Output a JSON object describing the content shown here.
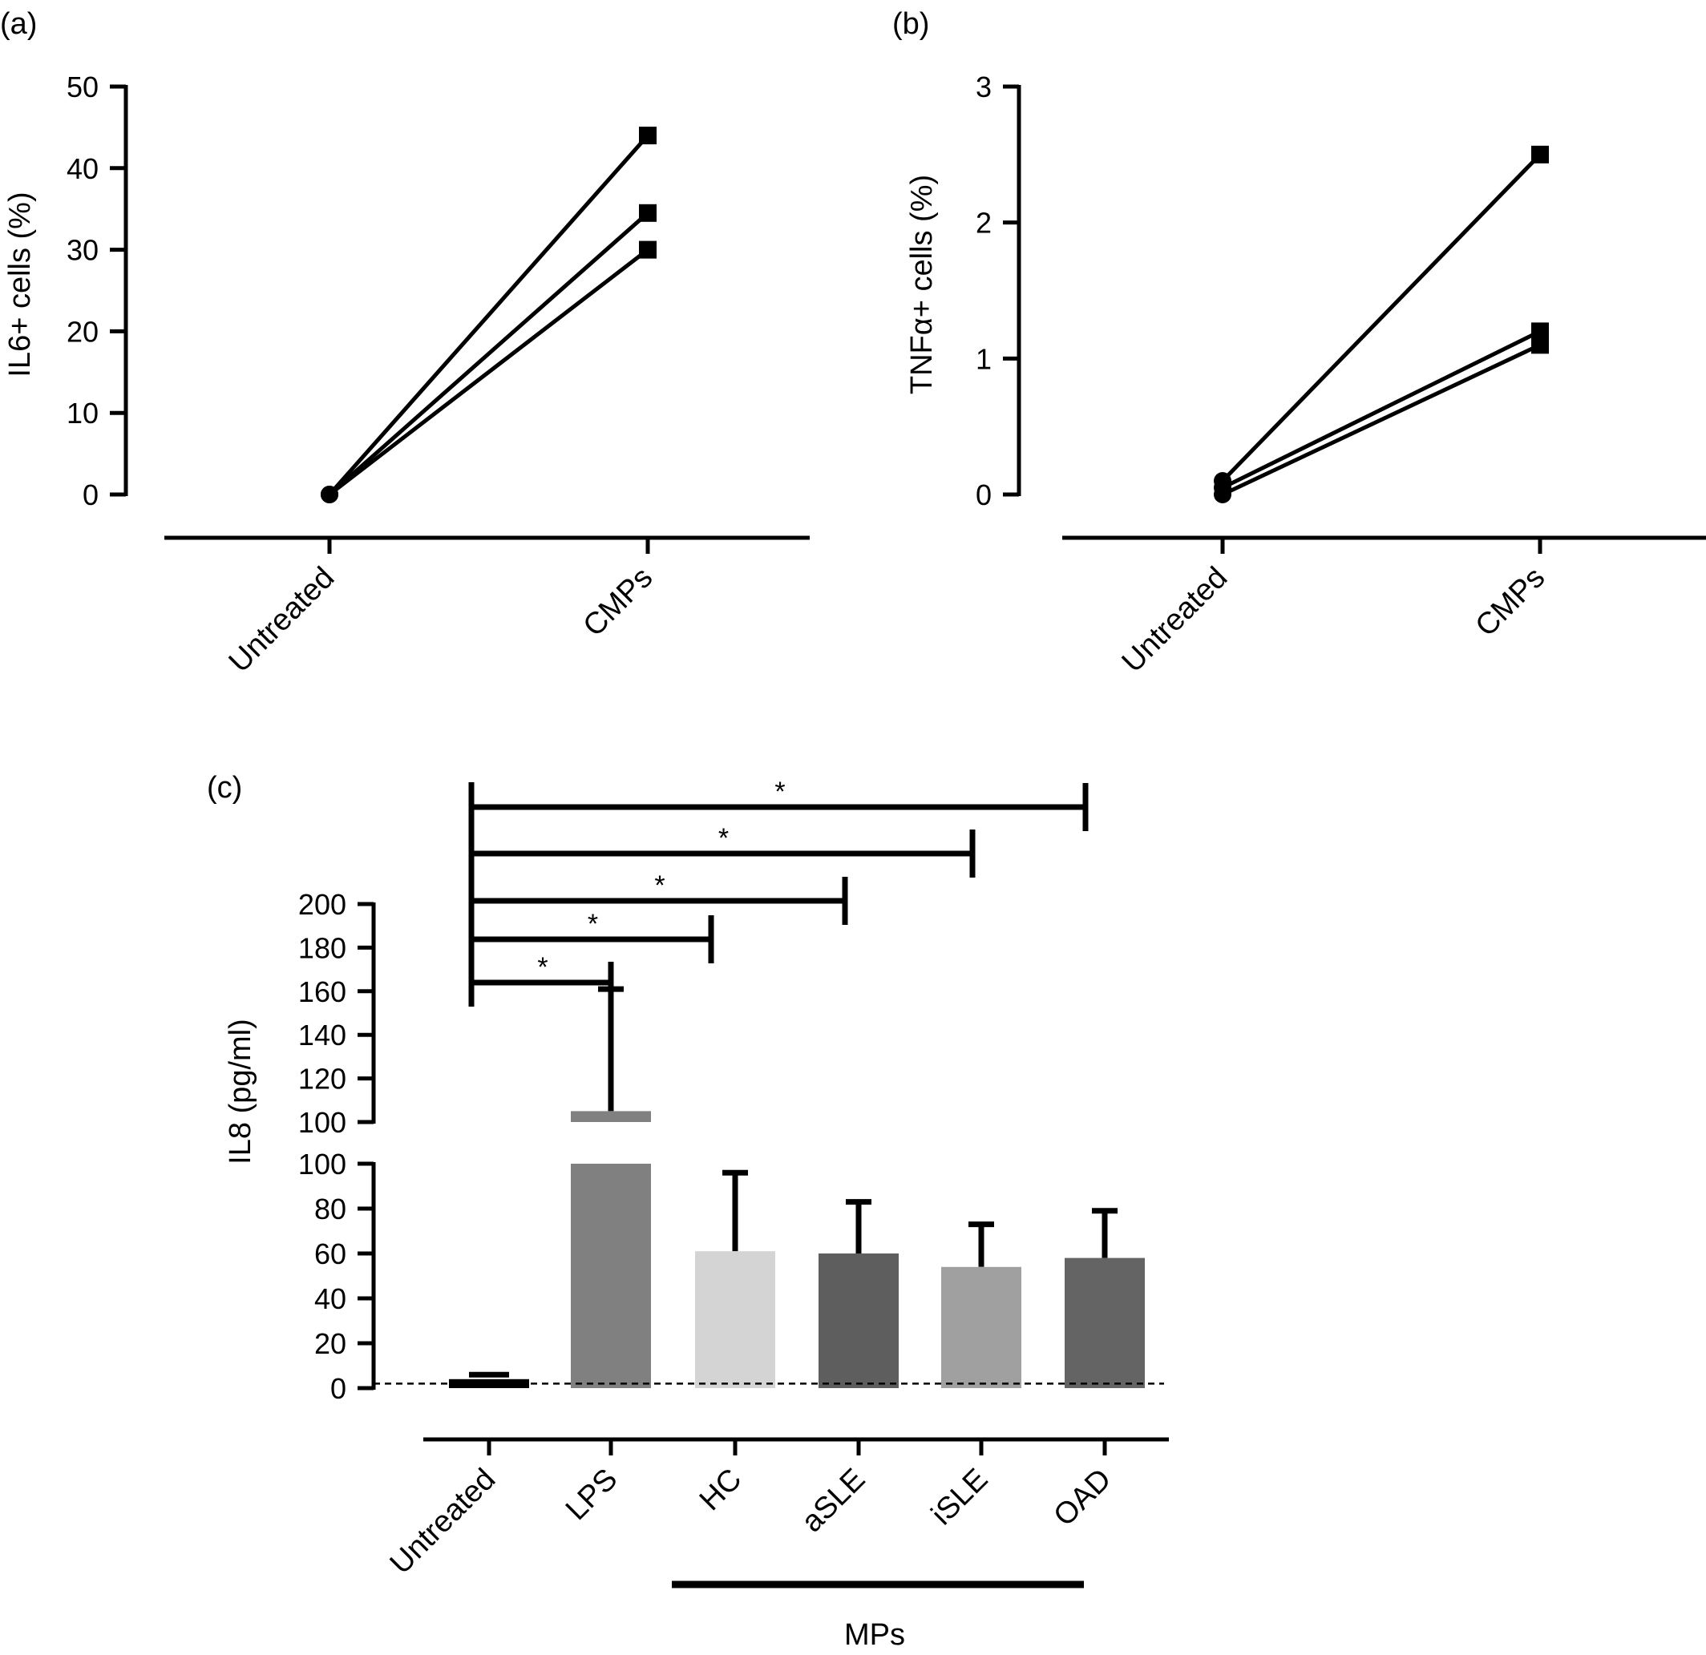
{
  "chart_data": [
    {
      "panel": "(a)",
      "type": "line",
      "ylabel": "IL6+ cells (%)",
      "xlabel": "",
      "categories": [
        "Untreated",
        "CMPs"
      ],
      "ylim": [
        0,
        50
      ],
      "yticks": [
        "0",
        "10",
        "20",
        "30",
        "40",
        "50"
      ],
      "series": [
        {
          "values": [
            0,
            44
          ]
        },
        {
          "values": [
            0,
            34.5
          ]
        },
        {
          "values": [
            0,
            30
          ]
        }
      ],
      "markers": [
        "circle",
        "square"
      ],
      "grid": false
    },
    {
      "panel": "(b)",
      "type": "line",
      "ylabel": "TNFα+ cells (%)",
      "xlabel": "",
      "categories": [
        "Untreated",
        "CMPs"
      ],
      "ylim": [
        0,
        3
      ],
      "yticks": [
        "0",
        "1",
        "2",
        "3"
      ],
      "series": [
        {
          "values": [
            0.1,
            2.5
          ]
        },
        {
          "values": [
            0.05,
            1.2
          ]
        },
        {
          "values": [
            0,
            1.1
          ]
        }
      ],
      "markers": [
        "circle",
        "square"
      ],
      "grid": false
    },
    {
      "panel": "(c)",
      "type": "bar",
      "ylabel": "IL8 (pg/ml)",
      "xlabel": "",
      "categories": [
        "Untreated",
        "LPS",
        "HC",
        "aSLE",
        "iSLE",
        "OAD"
      ],
      "values": [
        4,
        105,
        61,
        60,
        54,
        58
      ],
      "errors_upper": [
        6,
        161,
        96,
        83,
        73,
        79
      ],
      "bar_colors": [
        "#000000",
        "#808080",
        "#d4d4d4",
        "#5e5e5e",
        "#a0a0a0",
        "#646464"
      ],
      "baseline_dashed": 2,
      "broken_axis": {
        "lower": {
          "ylim": [
            0,
            100
          ],
          "yticks": [
            "0",
            "20",
            "40",
            "60",
            "80",
            "100"
          ]
        },
        "upper": {
          "ylim": [
            100,
            200
          ],
          "yticks": [
            "100",
            "120",
            "140",
            "160",
            "180",
            "200"
          ]
        }
      },
      "group_bracket": {
        "label": "MPs",
        "members": [
          "HC",
          "aSLE",
          "iSLE",
          "OAD"
        ]
      },
      "significance": [
        {
          "from": "Untreated",
          "to": "LPS",
          "label": "*"
        },
        {
          "from": "Untreated",
          "to": "HC",
          "label": "*"
        },
        {
          "from": "Untreated",
          "to": "aSLE",
          "label": "*"
        },
        {
          "from": "Untreated",
          "to": "iSLE",
          "label": "*"
        },
        {
          "from": "Untreated",
          "to": "OAD",
          "label": "*"
        }
      ],
      "grid": false
    }
  ]
}
